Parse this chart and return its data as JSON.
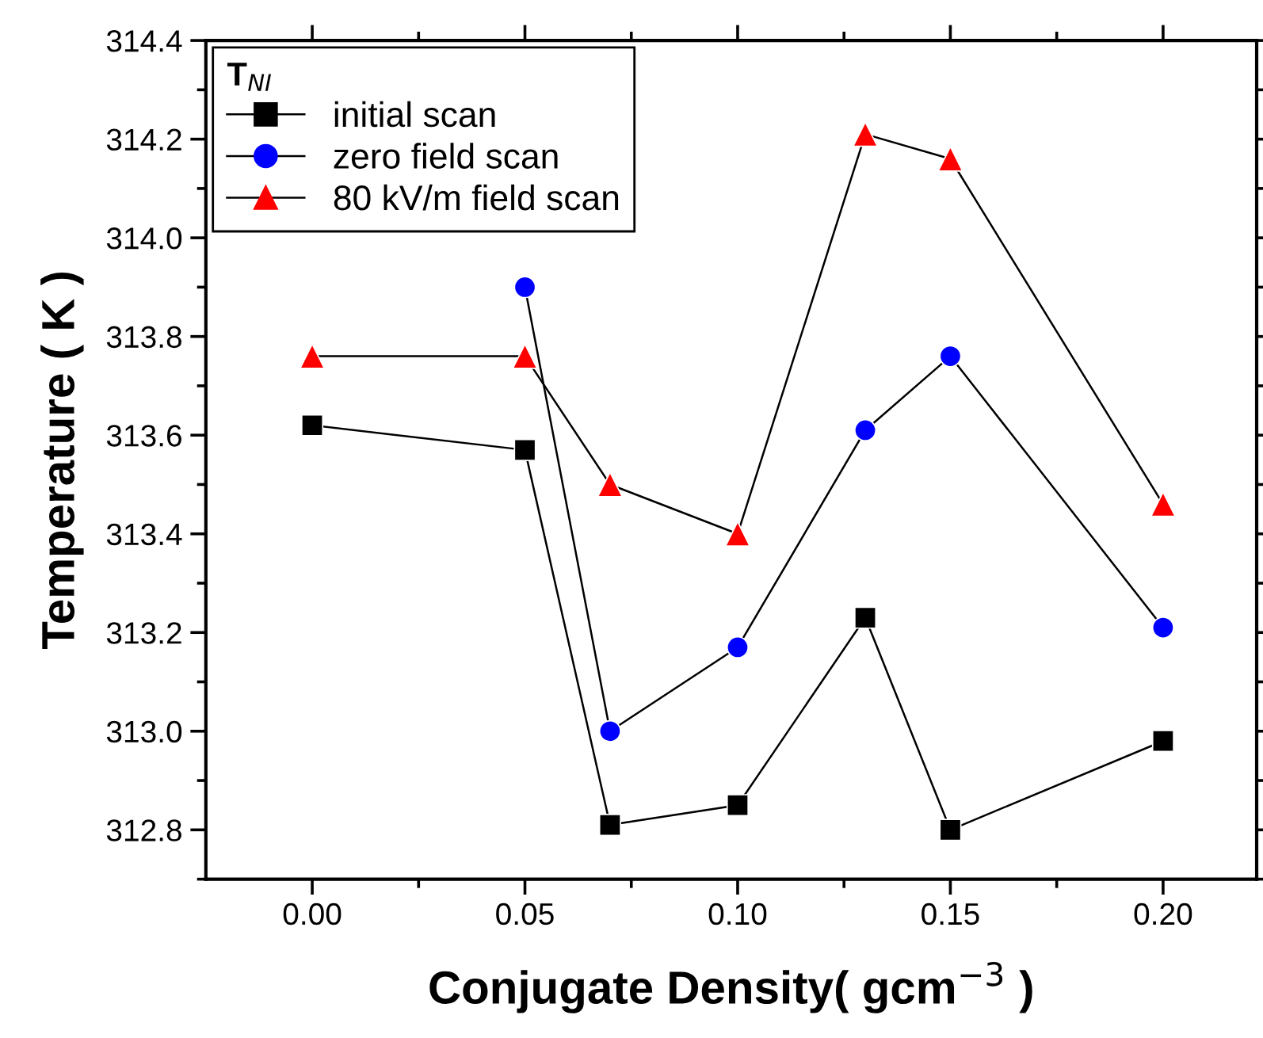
{
  "chart_data": {
    "type": "line",
    "xlabel": "Conjugate Density( gcm$^{−3}$ )",
    "ylabel": "Temperature ( K )",
    "legend_title": "T$_{NI}$",
    "x": [
      0.0,
      0.05,
      0.07,
      0.1,
      0.13,
      0.15,
      0.2
    ],
    "series": [
      {
        "name": "initial scan",
        "color": "#000000",
        "marker": "square",
        "values": [
          313.62,
          313.57,
          312.81,
          312.85,
          313.23,
          312.8,
          312.98
        ]
      },
      {
        "name": "zero field scan",
        "color": "#0000ff",
        "marker": "circle",
        "values": [
          null,
          313.9,
          313.0,
          313.17,
          313.61,
          313.76,
          313.21
        ]
      },
      {
        "name": "80 kV/m field scan",
        "color": "#ff0000",
        "marker": "triangle",
        "values": [
          313.76,
          313.76,
          313.5,
          313.4,
          314.21,
          314.16,
          313.46
        ]
      }
    ],
    "xlim": [
      -0.025,
      0.222
    ],
    "ylim": [
      312.7,
      314.4
    ],
    "xticks": [
      {
        "value": 0.0,
        "label": "0.00"
      },
      {
        "value": 0.025,
        "label": null
      },
      {
        "value": 0.05,
        "label": "0.05"
      },
      {
        "value": 0.075,
        "label": null
      },
      {
        "value": 0.1,
        "label": "0.10"
      },
      {
        "value": 0.125,
        "label": null
      },
      {
        "value": 0.15,
        "label": "0.15"
      },
      {
        "value": 0.175,
        "label": null
      },
      {
        "value": 0.2,
        "label": "0.20"
      }
    ],
    "yticks": [
      {
        "value": 312.7,
        "label": null
      },
      {
        "value": 312.8,
        "label": "312.8"
      },
      {
        "value": 312.9,
        "label": null
      },
      {
        "value": 313.0,
        "label": "313.0"
      },
      {
        "value": 313.1,
        "label": null
      },
      {
        "value": 313.2,
        "label": "313.2"
      },
      {
        "value": 313.3,
        "label": null
      },
      {
        "value": 313.4,
        "label": "313.4"
      },
      {
        "value": 313.5,
        "label": null
      },
      {
        "value": 313.6,
        "label": "313.6"
      },
      {
        "value": 313.7,
        "label": null
      },
      {
        "value": 313.8,
        "label": "313.8"
      },
      {
        "value": 313.9,
        "label": null
      },
      {
        "value": 314.0,
        "label": "314.0"
      },
      {
        "value": 314.1,
        "label": null
      },
      {
        "value": 314.2,
        "label": "314.2"
      },
      {
        "value": 314.3,
        "label": null
      },
      {
        "value": 314.4,
        "label": "314.4"
      }
    ],
    "grid": false,
    "legend": "top left",
    "line_style": "solid"
  }
}
